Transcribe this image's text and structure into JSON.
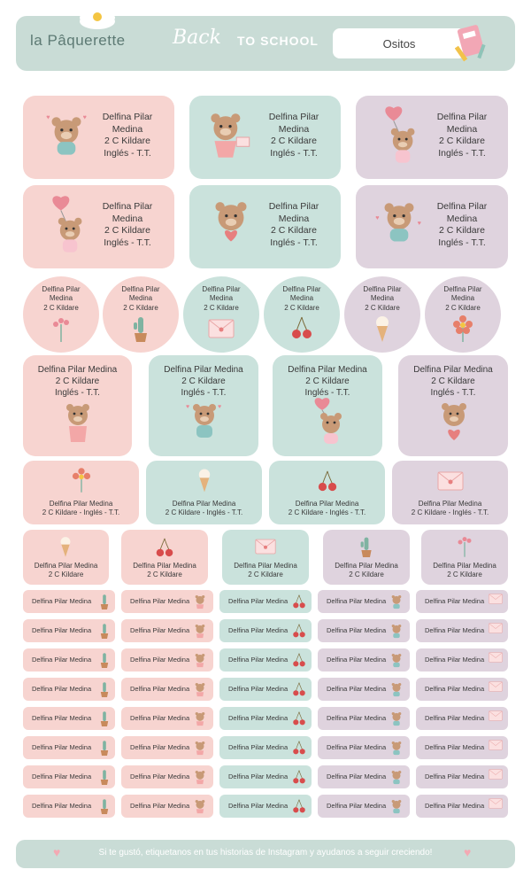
{
  "header": {
    "brand": "la Pâquerette",
    "title_script": "Back",
    "title_caps": "TO SCHOOL",
    "theme_name": "Ositos"
  },
  "label": {
    "line1": "Delfina Pilar",
    "line2": "Medina",
    "full_name": "Delfina Pilar Medina",
    "room": "2 C Kildare",
    "subject": "Inglés - T.T.",
    "room_subject": "2 C Kildare - Inglés - T.T."
  },
  "footer": {
    "text": "Si te gustó, etiquetanos en tus historias de Instagram y ayudanos a seguir creciendo!"
  },
  "colors": {
    "pink": "#f7d4d0",
    "mint": "#cae2dc",
    "lilac": "#dfd3de",
    "header": "#c9dcd6"
  }
}
